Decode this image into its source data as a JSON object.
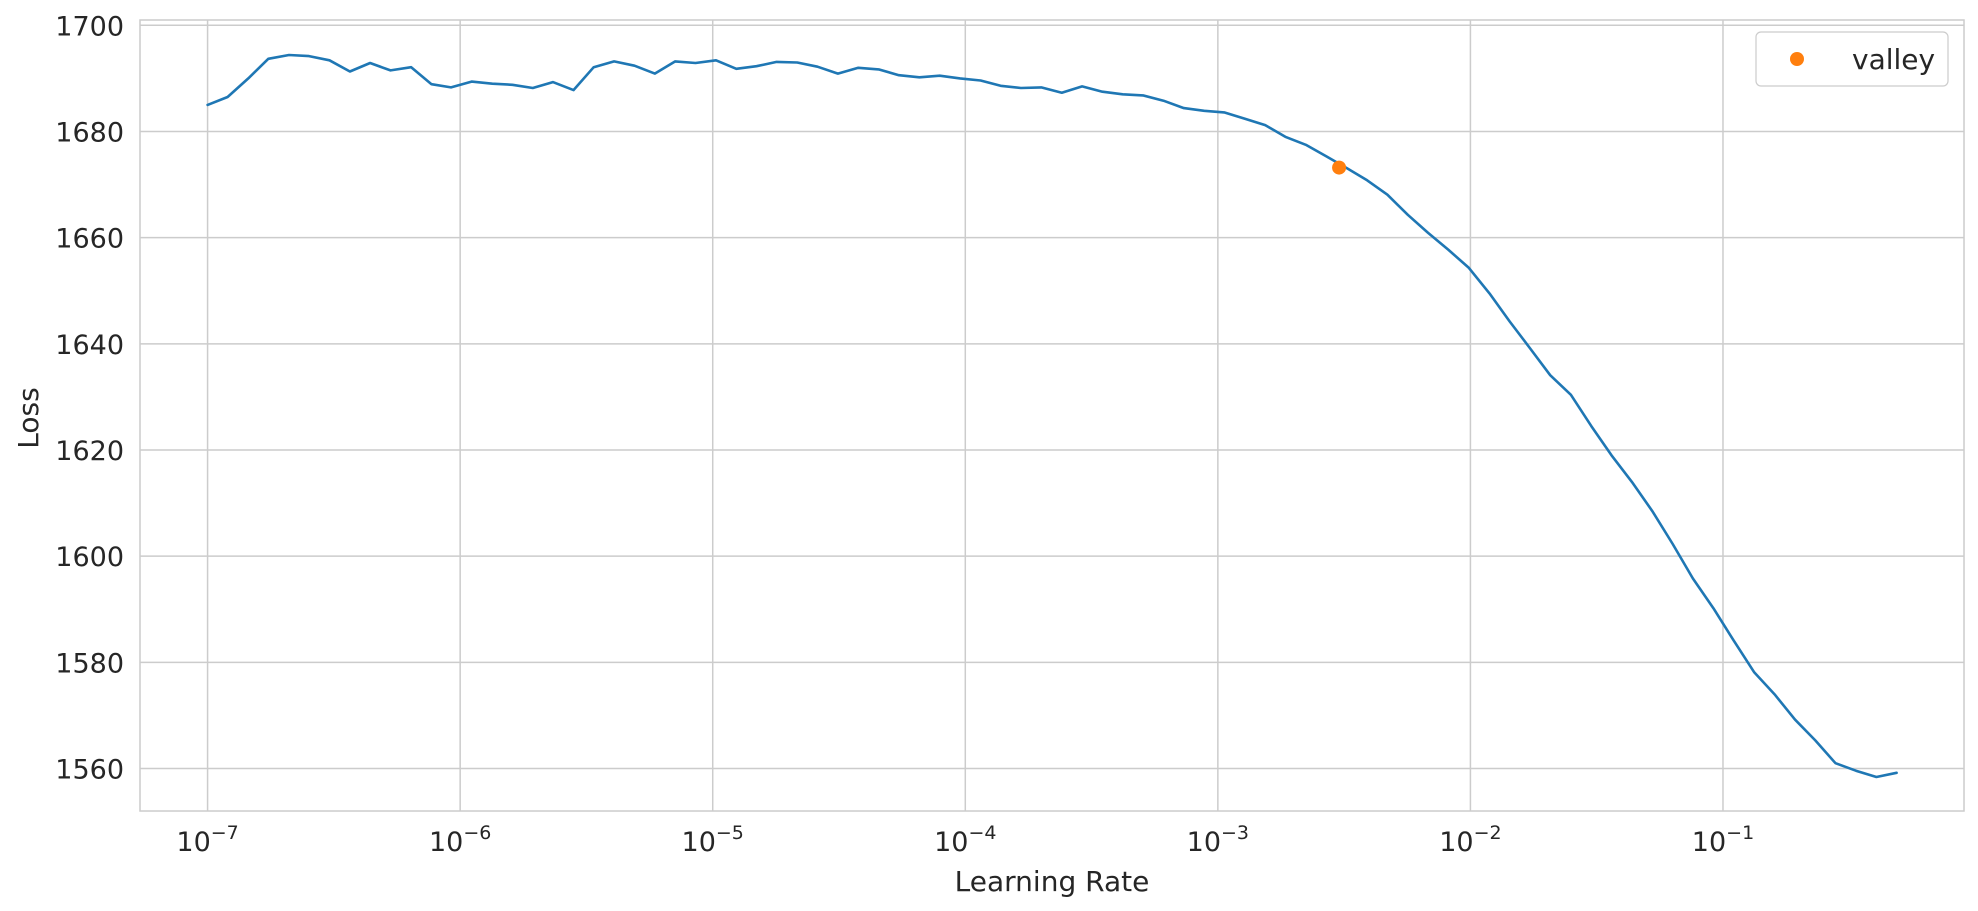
{
  "chart_data": {
    "type": "line",
    "title": "",
    "xlabel": "Learning Rate",
    "ylabel": "Loss",
    "xscale": "log",
    "xlim": [
      5.4e-08,
      0.9
    ],
    "ylim": [
      1552,
      1701
    ],
    "grid": true,
    "legend": {
      "placement": "top-right",
      "entries": [
        "valley"
      ]
    },
    "colors": {
      "line": "#1f77b4",
      "marker": "#ff7f0e",
      "grid": "#cccccc",
      "frame": "#cccccc"
    },
    "x_ticks": [
      {
        "value": 1e-07,
        "base": "10",
        "exp": "−7"
      },
      {
        "value": 1e-06,
        "base": "10",
        "exp": "−6"
      },
      {
        "value": 1e-05,
        "base": "10",
        "exp": "−5"
      },
      {
        "value": 0.0001,
        "base": "10",
        "exp": "−4"
      },
      {
        "value": 0.001,
        "base": "10",
        "exp": "−3"
      },
      {
        "value": 0.01,
        "base": "10",
        "exp": "−2"
      },
      {
        "value": 0.1,
        "base": "10",
        "exp": "−1"
      }
    ],
    "y_ticks": [
      {
        "value": 1560,
        "label": "1560"
      },
      {
        "value": 1580,
        "label": "1580"
      },
      {
        "value": 1600,
        "label": "1600"
      },
      {
        "value": 1620,
        "label": "1620"
      },
      {
        "value": 1640,
        "label": "1640"
      },
      {
        "value": 1660,
        "label": "1660"
      },
      {
        "value": 1680,
        "label": "1680"
      },
      {
        "value": 1700,
        "label": "1700"
      }
    ],
    "series": [
      {
        "x": [
          1e-07,
          1.2e-07,
          1.45e-07,
          1.74e-07,
          2.1e-07,
          2.52e-07,
          3.04e-07,
          3.66e-07,
          4.4e-07,
          5.3e-07,
          6.4e-07,
          7.7e-07,
          9.2e-07,
          1.11e-06,
          1.34e-06,
          1.61e-06,
          1.94e-06,
          2.33e-06,
          2.81e-06,
          3.38e-06,
          4.07e-06,
          4.9e-06,
          5.9e-06,
          7.1e-06,
          8.55e-06,
          1.03e-05,
          1.24e-05,
          1.49e-05,
          1.79e-05,
          2.16e-05,
          2.6e-05,
          3.13e-05,
          3.77e-05,
          4.54e-05,
          5.46e-05,
          6.58e-05,
          7.92e-05,
          9.54e-05,
          0.000115,
          0.000138,
          0.000166,
          0.0002,
          0.000241,
          0.00029,
          0.000349,
          0.00042,
          0.000506,
          0.000609,
          0.000733,
          0.000883,
          0.00106,
          0.00128,
          0.00154,
          0.00185,
          0.00223,
          0.00269,
          0.00324,
          0.0039,
          0.00469,
          0.00565,
          0.0068,
          0.00819,
          0.00986,
          0.0119,
          0.0143,
          0.0172,
          0.0207,
          0.025,
          0.0301,
          0.0362,
          0.0436,
          0.0525,
          0.0632,
          0.076,
          0.0916,
          0.11,
          0.133,
          0.16,
          0.193,
          0.232,
          0.279,
          0.336,
          0.405,
          0.487
        ],
        "values": [
          1685.0,
          1686.5,
          1690.0,
          1693.7,
          1694.4,
          1694.2,
          1693.4,
          1691.3,
          1692.9,
          1691.5,
          1692.1,
          1688.9,
          1688.3,
          1689.4,
          1689.0,
          1688.8,
          1688.2,
          1689.3,
          1687.8,
          1692.1,
          1693.2,
          1692.4,
          1690.9,
          1693.2,
          1692.9,
          1693.4,
          1691.8,
          1692.3,
          1693.1,
          1693.0,
          1692.2,
          1690.9,
          1692.0,
          1691.7,
          1690.6,
          1690.2,
          1690.5,
          1690.0,
          1689.6,
          1688.6,
          1688.2,
          1688.3,
          1687.3,
          1688.5,
          1687.5,
          1687.0,
          1686.8,
          1685.8,
          1684.4,
          1683.9,
          1683.6,
          1682.4,
          1681.2,
          1679.0,
          1677.5,
          1675.3,
          1673.1,
          1670.8,
          1668.1,
          1664.3,
          1660.9,
          1657.7,
          1654.3,
          1649.5,
          1644.2,
          1639.2,
          1634.1,
          1630.4,
          1624.5,
          1619.0,
          1614.0,
          1608.5,
          1602.3,
          1595.8,
          1590.2,
          1584.2,
          1578.1,
          1574.0,
          1569.2,
          1565.3,
          1561.0,
          1559.6,
          1558.4,
          1559.2
        ]
      },
      {
        "name": "valley",
        "type": "scatter",
        "x": [
          0.00302
        ],
        "values": [
          1673.2
        ]
      }
    ]
  }
}
